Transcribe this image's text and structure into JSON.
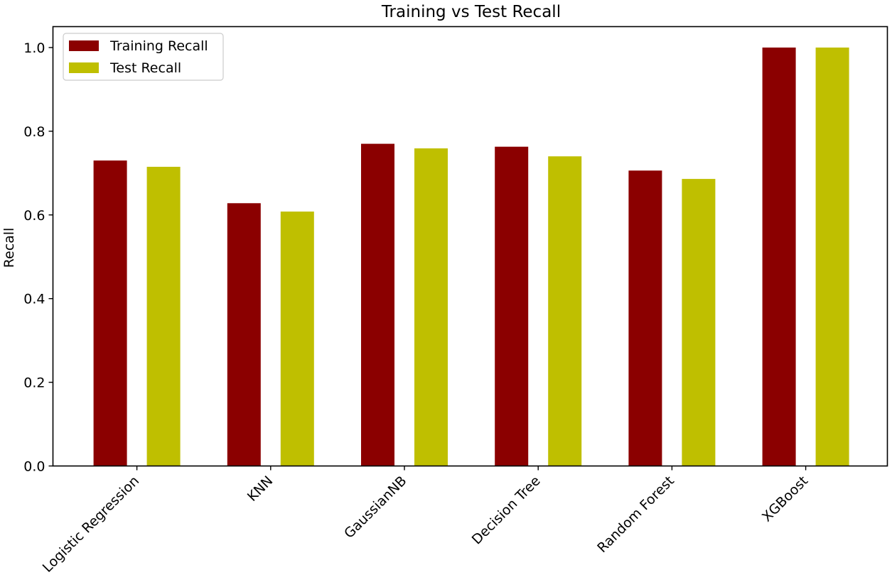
{
  "chart_data": {
    "type": "bar",
    "title": "Training vs Test Recall",
    "xlabel": "",
    "ylabel": "Recall",
    "categories": [
      "Logistic Regression",
      "KNN",
      "GaussianNB",
      "Decision Tree",
      "Random Forest",
      "XGBoost"
    ],
    "series": [
      {
        "name": "Training Recall",
        "color": "#8b0000",
        "values": [
          0.73,
          0.628,
          0.77,
          0.763,
          0.706,
          1.0
        ]
      },
      {
        "name": "Test Recall",
        "color": "#bfbf00",
        "values": [
          0.715,
          0.608,
          0.759,
          0.74,
          0.686,
          1.0
        ]
      }
    ],
    "ylim": [
      0,
      1.05
    ],
    "yticks": [
      0.0,
      0.2,
      0.4,
      0.6,
      0.8,
      1.0
    ],
    "ytick_labels": [
      "0.0",
      "0.2",
      "0.4",
      "0.6",
      "0.8",
      "1.0"
    ],
    "grid": false,
    "legend_position": "top-left"
  }
}
